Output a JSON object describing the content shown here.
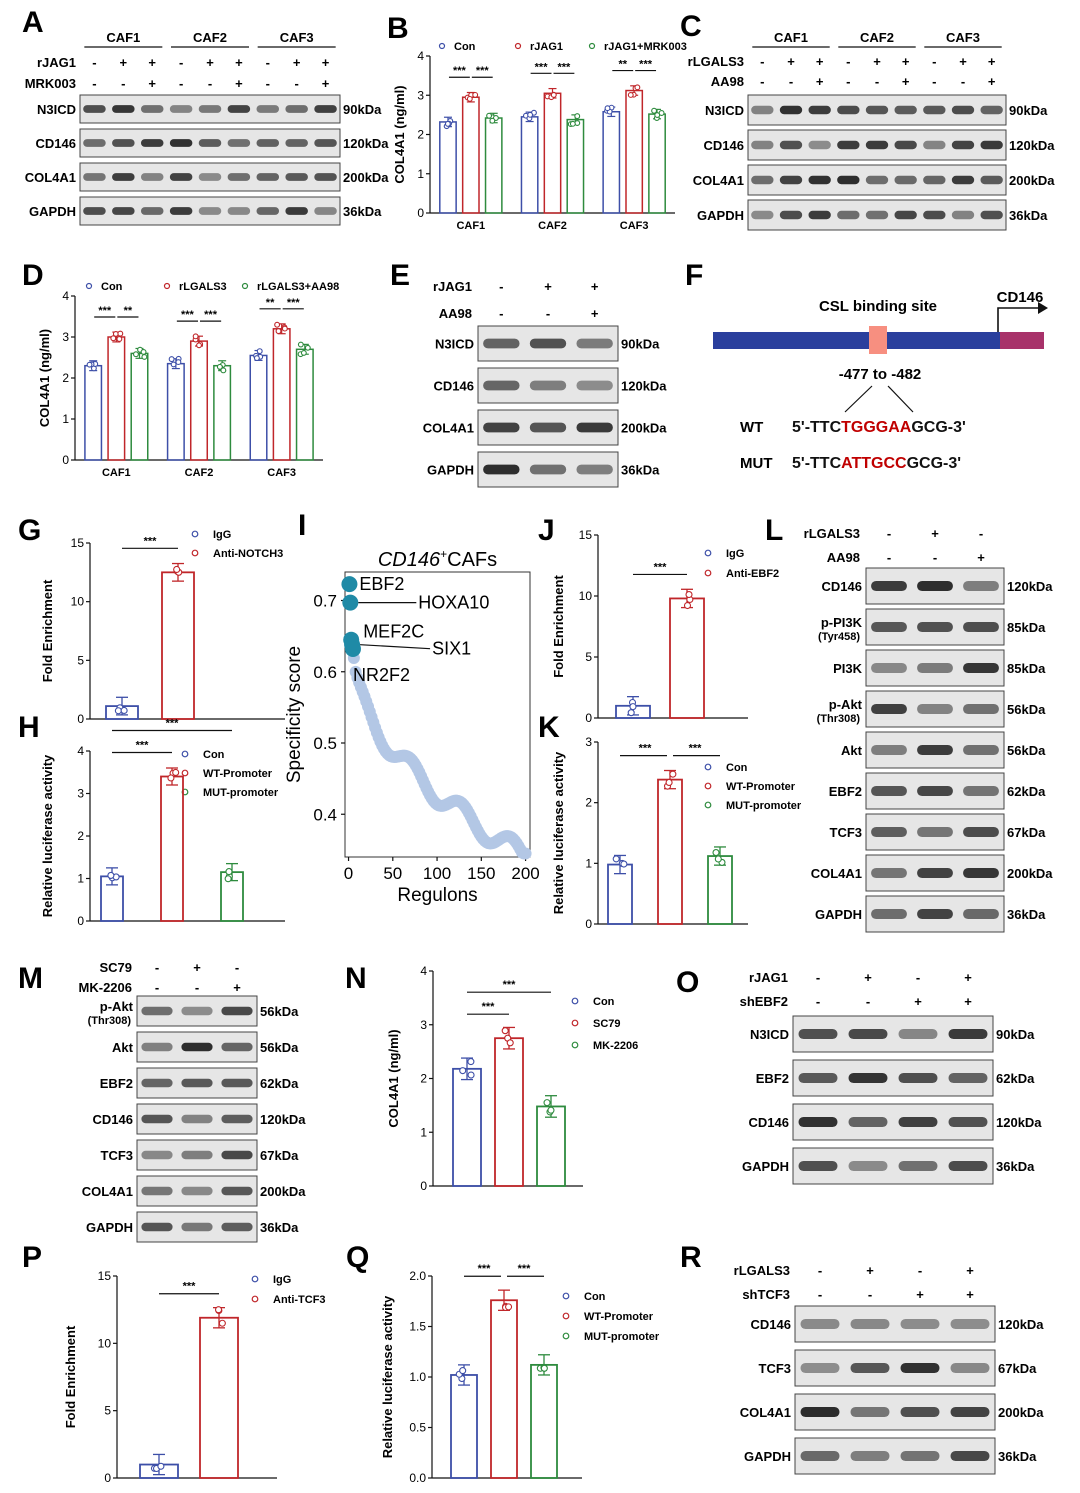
{
  "colors": {
    "con": "#3d4fa8",
    "trt": "#c0262a",
    "third": "#2e8b3e",
    "blot_bg": "#e6e6e6",
    "band": "#222222",
    "tick": "#111111",
    "regulon_hi": "#1f8aa6",
    "regulon_lo": "#b3c7e5",
    "csl_bar": "#2a3f9d",
    "csl_site": "#f78f80",
    "cd146_box": "#a8326a",
    "seq_red": "#c00000"
  },
  "panels": {
    "A": {
      "label": "A",
      "groups": [
        "CAF1",
        "CAF2",
        "CAF3"
      ],
      "rows": [
        {
          "name": "rJAG1",
          "signs": [
            "-",
            "+",
            "+",
            "-",
            "+",
            "+",
            "-",
            "+",
            "+"
          ]
        },
        {
          "name": "MRK003",
          "signs": [
            "-",
            "-",
            "+",
            "-",
            "-",
            "+",
            "-",
            "-",
            "+"
          ]
        }
      ],
      "blots": [
        {
          "name": "N3ICD",
          "kda": "90kDa"
        },
        {
          "name": "CD146",
          "kda": "120kDa"
        },
        {
          "name": "COL4A1",
          "kda": "200kDa"
        },
        {
          "name": "GAPDH",
          "kda": "36kDa"
        }
      ]
    },
    "B": {
      "label": "B",
      "ylabel": "COL4A1 (ng/ml)",
      "legend": [
        "Con",
        "rJAG1",
        "rJAG1+MRK003"
      ],
      "groups": [
        "CAF1",
        "CAF2",
        "CAF3"
      ],
      "ylim": [
        0,
        4
      ],
      "yticks": [
        "0",
        "1",
        "2",
        "3",
        "4"
      ],
      "values": [
        [
          2.32,
          2.95,
          2.42
        ],
        [
          2.45,
          3.05,
          2.38
        ],
        [
          2.58,
          3.12,
          2.52
        ]
      ],
      "sig": [
        [
          "***",
          "***"
        ],
        [
          "***",
          "***"
        ],
        [
          "**",
          "***"
        ]
      ]
    },
    "C": {
      "label": "C",
      "groups": [
        "CAF1",
        "CAF2",
        "CAF3"
      ],
      "rows": [
        {
          "name": "rLGALS3",
          "signs": [
            "-",
            "+",
            "+",
            "-",
            "+",
            "+",
            "-",
            "+",
            "+"
          ]
        },
        {
          "name": "AA98",
          "signs": [
            "-",
            "-",
            "+",
            "-",
            "-",
            "+",
            "-",
            "-",
            "+"
          ]
        }
      ],
      "blots": [
        {
          "name": "N3ICD",
          "kda": "90kDa"
        },
        {
          "name": "CD146",
          "kda": "120kDa"
        },
        {
          "name": "COL4A1",
          "kda": "200kDa"
        },
        {
          "name": "GAPDH",
          "kda": "36kDa"
        }
      ]
    },
    "D": {
      "label": "D",
      "ylabel": "COL4A1 (ng/ml)",
      "legend": [
        "Con",
        "rLGALS3",
        "rLGALS3+AA98"
      ],
      "groups": [
        "CAF1",
        "CAF2",
        "CAF3"
      ],
      "ylim": [
        0,
        4
      ],
      "yticks": [
        "0",
        "1",
        "2",
        "3",
        "4"
      ],
      "values": [
        [
          2.3,
          3.0,
          2.6
        ],
        [
          2.35,
          2.9,
          2.3
        ],
        [
          2.55,
          3.2,
          2.7
        ]
      ],
      "sig": [
        [
          "***",
          "**"
        ],
        [
          "***",
          "***"
        ],
        [
          "**",
          "***"
        ]
      ]
    },
    "E": {
      "label": "E",
      "rows": [
        {
          "name": "rJAG1",
          "signs": [
            "-",
            "+",
            "+"
          ]
        },
        {
          "name": "AA98",
          "signs": [
            "-",
            "-",
            "+"
          ]
        }
      ],
      "blots": [
        {
          "name": "N3ICD",
          "kda": "90kDa"
        },
        {
          "name": "CD146",
          "kda": "120kDa"
        },
        {
          "name": "COL4A1",
          "kda": "200kDa"
        },
        {
          "name": "GAPDH",
          "kda": "36kDa"
        }
      ]
    },
    "F": {
      "label": "F",
      "site_label": "CSL binding site",
      "gene": "CD146",
      "position": "-477 to -482",
      "wt_label": "WT",
      "wt_pre": "5'-TTC",
      "wt_red": "TGGGAA",
      "wt_post": "GCG-3'",
      "mut_label": "MUT",
      "mut_pre": "5'-TTC",
      "mut_red": "ATTGCC",
      "mut_post": "GCG-3'"
    },
    "G": {
      "label": "G",
      "ylabel": "Fold Enrichment",
      "legend": [
        "IgG",
        "Anti-NOTCH3"
      ],
      "ylim": [
        0,
        15
      ],
      "yticks": [
        "0",
        "5",
        "10",
        "15"
      ],
      "values": [
        1.1,
        12.5
      ],
      "sig": [
        "***"
      ]
    },
    "H": {
      "label": "H",
      "ylabel": "Relative luciferase activity",
      "legend": [
        "Con",
        "WT-Promoter",
        "MUT-promoter"
      ],
      "ylim": [
        0,
        4
      ],
      "yticks": [
        "0",
        "1",
        "2",
        "3",
        "4"
      ],
      "values": [
        1.05,
        3.4,
        1.15
      ],
      "sig": [
        "***",
        "***"
      ]
    },
    "I": {
      "label": "I",
      "title_italic": "CD146",
      "title_sup": "+",
      "title_rest": "CAFs",
      "ylabel": "Specificity score",
      "xlabel": "Regulons",
      "xticks": [
        "0",
        "50",
        "100",
        "150",
        "200"
      ],
      "yticks": [
        "0.4",
        "0.5",
        "0.6",
        "0.7"
      ],
      "ylim": [
        0.34,
        0.74
      ],
      "xlim": [
        -4,
        205
      ],
      "top": [
        {
          "name": "EBF2",
          "rank": 1,
          "score": 0.723
        },
        {
          "name": "HOXA10",
          "rank": 2,
          "score": 0.697
        },
        {
          "name": "MEF2C",
          "rank": 3,
          "score": 0.645
        },
        {
          "name": "SIX1",
          "rank": 4,
          "score": 0.638
        },
        {
          "name": "NR2F2",
          "rank": 5,
          "score": 0.632
        }
      ]
    },
    "J": {
      "label": "J",
      "ylabel": "Fold Enrichment",
      "legend": [
        "IgG",
        "Anti-EBF2"
      ],
      "ylim": [
        0,
        15
      ],
      "yticks": [
        "0",
        "5",
        "10",
        "15"
      ],
      "values": [
        1.0,
        9.8
      ],
      "sig": [
        "***"
      ]
    },
    "K": {
      "label": "K",
      "ylabel": "Relative luciferase activity",
      "legend": [
        "Con",
        "WT-Promoter",
        "MUT-promoter"
      ],
      "ylim": [
        0,
        3
      ],
      "yticks": [
        "0",
        "1",
        "2",
        "3"
      ],
      "values": [
        0.98,
        2.38,
        1.12
      ],
      "sig": [
        "***",
        "***"
      ]
    },
    "L": {
      "label": "L",
      "rows": [
        {
          "name": "rLGALS3",
          "signs": [
            "-",
            "+",
            "-"
          ]
        },
        {
          "name": "AA98",
          "signs": [
            "-",
            "-",
            "+"
          ]
        }
      ],
      "blots": [
        {
          "name": "CD146",
          "kda": "120kDa"
        },
        {
          "name": "p-PI3K",
          "sub": "(Tyr458)",
          "kda": "85kDa"
        },
        {
          "name": "PI3K",
          "kda": "85kDa"
        },
        {
          "name": "p-Akt",
          "sub": "(Thr308)",
          "kda": "56kDa"
        },
        {
          "name": "Akt",
          "kda": "56kDa"
        },
        {
          "name": "EBF2",
          "kda": "62kDa"
        },
        {
          "name": "TCF3",
          "kda": "67kDa"
        },
        {
          "name": "COL4A1",
          "kda": "200kDa"
        },
        {
          "name": "GAPDH",
          "kda": "36kDa"
        }
      ]
    },
    "M": {
      "label": "M",
      "rows": [
        {
          "name": "SC79",
          "signs": [
            "-",
            "+",
            "-"
          ]
        },
        {
          "name": "MK-2206",
          "signs": [
            "-",
            "-",
            "+"
          ]
        }
      ],
      "blots": [
        {
          "name": "p-Akt",
          "sub": "(Thr308)",
          "kda": "56kDa"
        },
        {
          "name": "Akt",
          "kda": "56kDa"
        },
        {
          "name": "EBF2",
          "kda": "62kDa"
        },
        {
          "name": "CD146",
          "kda": "120kDa"
        },
        {
          "name": "TCF3",
          "kda": "67kDa"
        },
        {
          "name": "COL4A1",
          "kda": "200kDa"
        },
        {
          "name": "GAPDH",
          "kda": "36kDa"
        }
      ]
    },
    "N": {
      "label": "N",
      "ylabel": "COL4A1 (ng/ml)",
      "legend": [
        "Con",
        "SC79",
        "MK-2206"
      ],
      "ylim": [
        0,
        4
      ],
      "yticks": [
        "0",
        "1",
        "2",
        "3",
        "4"
      ],
      "values": [
        2.18,
        2.75,
        1.48
      ],
      "sig": [
        "***",
        "***"
      ]
    },
    "O": {
      "label": "O",
      "rows": [
        {
          "name": "rJAG1",
          "signs": [
            "-",
            "+",
            "-",
            "+"
          ]
        },
        {
          "name": "shEBF2",
          "signs": [
            "-",
            "-",
            "+",
            "+"
          ]
        }
      ],
      "blots": [
        {
          "name": "N3ICD",
          "kda": "90kDa"
        },
        {
          "name": "EBF2",
          "kda": "62kDa"
        },
        {
          "name": "CD146",
          "kda": "120kDa"
        },
        {
          "name": "GAPDH",
          "kda": "36kDa"
        }
      ]
    },
    "P": {
      "label": "P",
      "ylabel": "Fold Enrichment",
      "legend": [
        "IgG",
        "Anti-TCF3"
      ],
      "ylim": [
        0,
        15
      ],
      "yticks": [
        "0",
        "5",
        "10",
        "15"
      ],
      "values": [
        1.0,
        11.9
      ],
      "sig": [
        "***"
      ]
    },
    "Q": {
      "label": "Q",
      "ylabel": "Relative luciferase activity",
      "legend": [
        "Con",
        "WT-Promoter",
        "MUT-promoter"
      ],
      "ylim": [
        0,
        2
      ],
      "yticks": [
        "0.0",
        "0.5",
        "1.0",
        "1.5",
        "2.0"
      ],
      "values": [
        1.02,
        1.76,
        1.12
      ],
      "sig": [
        "***",
        "***"
      ]
    },
    "R": {
      "label": "R",
      "rows": [
        {
          "name": "rLGALS3",
          "signs": [
            "-",
            "+",
            "-",
            "+"
          ]
        },
        {
          "name": "shTCF3",
          "signs": [
            "-",
            "-",
            "+",
            "+"
          ]
        }
      ],
      "blots": [
        {
          "name": "CD146",
          "kda": "120kDa"
        },
        {
          "name": "TCF3",
          "kda": "67kDa"
        },
        {
          "name": "COL4A1",
          "kda": "200kDa"
        },
        {
          "name": "GAPDH",
          "kda": "36kDa"
        }
      ]
    }
  }
}
